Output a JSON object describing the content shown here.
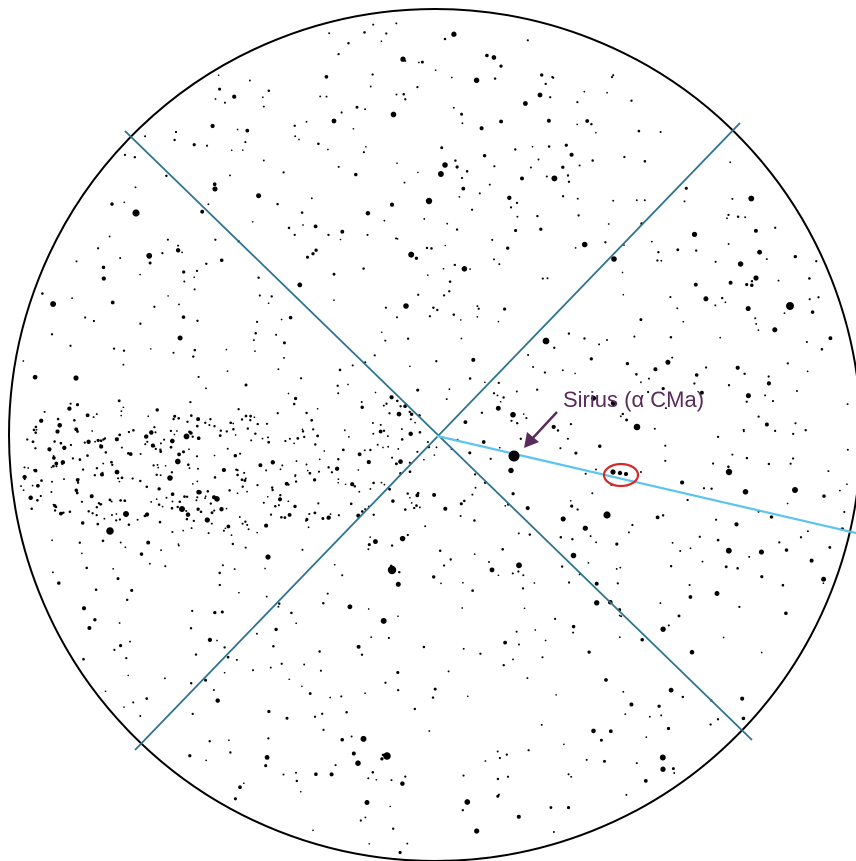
{
  "annotation": {
    "label": "Sirius (α CMa)"
  },
  "colors": {
    "background": "#ffffff",
    "circle_border": "#000000",
    "star": "#000000",
    "cross_lines": "#2e7390",
    "pointer_line": "#5cc4ee",
    "annotation": "#5a2a5a",
    "highlight_ellipse": "#d42a2a"
  },
  "icons": {
    "arrow": "arrow-icon"
  }
}
